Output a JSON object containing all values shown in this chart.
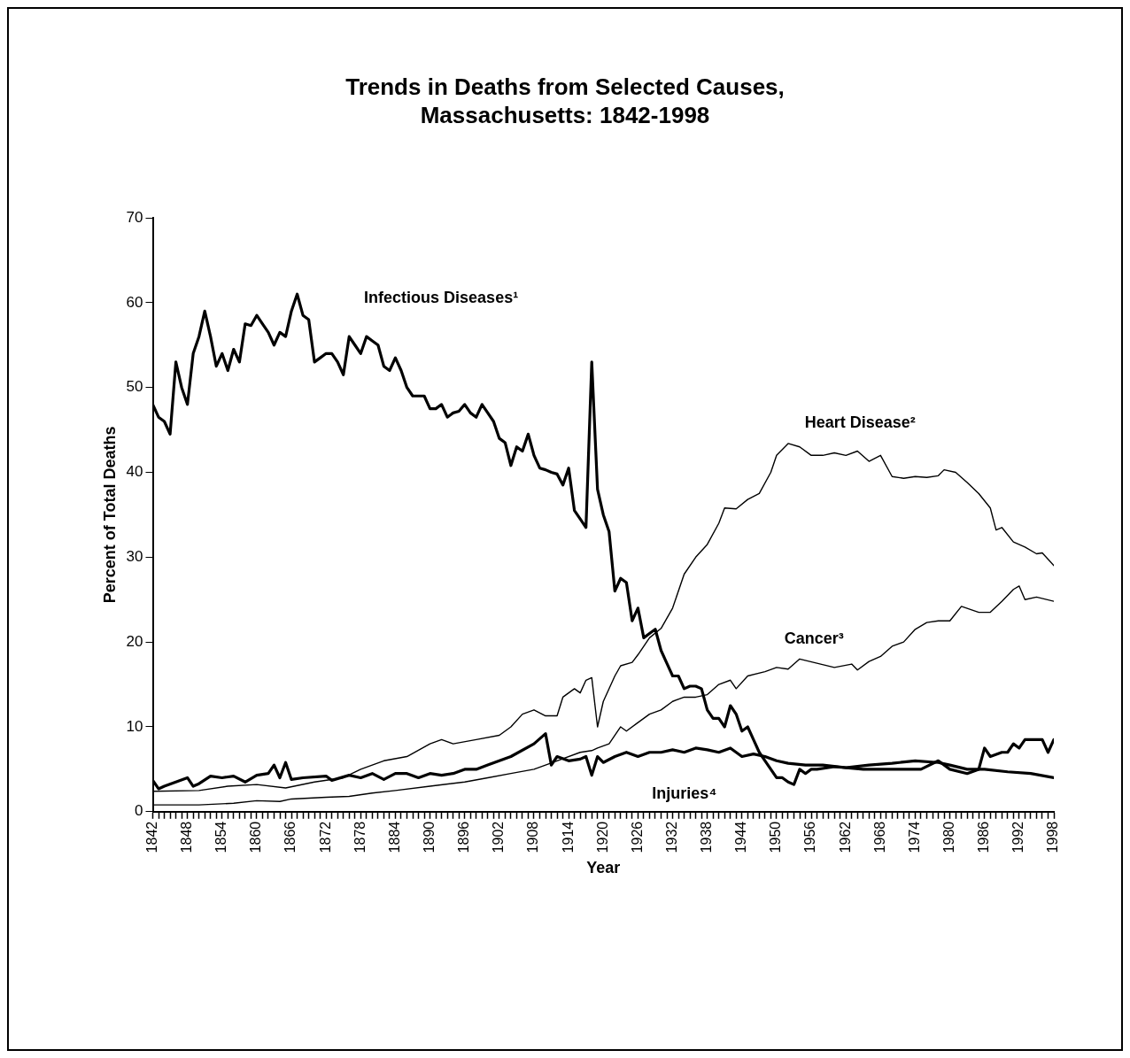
{
  "chart_data": {
    "type": "line",
    "title": "Trends in Deaths from Selected Causes, Massachusetts: 1842-1998",
    "xlabel": "Year",
    "ylabel": "Percent of Total Deaths",
    "xlim": [
      1842,
      1998
    ],
    "ylim": [
      0,
      70
    ],
    "yticks": [
      0,
      10,
      20,
      30,
      40,
      50,
      60,
      70
    ],
    "xticks": [
      1842,
      {
        "value": 1843,
        "label": null
      },
      {
        "value": 1844,
        "label": null
      },
      {
        "value": 1845,
        "label": null
      },
      {
        "value": 1846,
        "label": null
      },
      {
        "value": 1847,
        "label": null
      },
      1848,
      {
        "value": 1849,
        "label": null
      },
      {
        "value": 1850,
        "label": null
      },
      {
        "value": 1851,
        "label": null
      },
      {
        "value": 1852,
        "label": null
      },
      {
        "value": 1853,
        "label": null
      },
      1854,
      {
        "value": 1855,
        "label": null
      },
      {
        "value": 1856,
        "label": null
      },
      {
        "value": 1857,
        "label": null
      },
      {
        "value": 1858,
        "label": null
      },
      {
        "value": 1859,
        "label": null
      },
      1860,
      {
        "value": 1861,
        "label": null
      },
      {
        "value": 1862,
        "label": null
      },
      {
        "value": 1863,
        "label": null
      },
      {
        "value": 1864,
        "label": null
      },
      {
        "value": 1865,
        "label": null
      },
      1866,
      {
        "value": 1867,
        "label": null
      },
      {
        "value": 1868,
        "label": null
      },
      {
        "value": 1869,
        "label": null
      },
      {
        "value": 1870,
        "label": null
      },
      {
        "value": 1871,
        "label": null
      },
      1872,
      {
        "value": 1873,
        "label": null
      },
      {
        "value": 1874,
        "label": null
      },
      {
        "value": 1875,
        "label": null
      },
      {
        "value": 1876,
        "label": null
      },
      {
        "value": 1877,
        "label": null
      },
      1878,
      {
        "value": 1879,
        "label": null
      },
      {
        "value": 1880,
        "label": null
      },
      {
        "value": 1881,
        "label": null
      },
      {
        "value": 1882,
        "label": null
      },
      {
        "value": 1883,
        "label": null
      },
      1884,
      {
        "value": 1885,
        "label": null
      },
      {
        "value": 1886,
        "label": null
      },
      {
        "value": 1887,
        "label": null
      },
      {
        "value": 1888,
        "label": null
      },
      {
        "value": 1889,
        "label": null
      },
      1890,
      {
        "value": 1891,
        "label": null
      },
      {
        "value": 1892,
        "label": null
      },
      {
        "value": 1893,
        "label": null
      },
      {
        "value": 1894,
        "label": null
      },
      {
        "value": 1895,
        "label": null
      },
      1896,
      {
        "value": 1897,
        "label": null
      },
      {
        "value": 1898,
        "label": null
      },
      {
        "value": 1899,
        "label": null
      },
      {
        "value": 1900,
        "label": null
      },
      {
        "value": 1901,
        "label": null
      },
      1902,
      {
        "value": 1903,
        "label": null
      },
      {
        "value": 1904,
        "label": null
      },
      {
        "value": 1905,
        "label": null
      },
      {
        "value": 1906,
        "label": null
      },
      {
        "value": 1907,
        "label": null
      },
      1908,
      {
        "value": 1909,
        "label": null
      },
      {
        "value": 1910,
        "label": null
      },
      {
        "value": 1911,
        "label": null
      },
      {
        "value": 1912,
        "label": null
      },
      {
        "value": 1913,
        "label": null
      },
      1914,
      {
        "value": 1915,
        "label": null
      },
      {
        "value": 1916,
        "label": null
      },
      {
        "value": 1917,
        "label": null
      },
      {
        "value": 1918,
        "label": null
      },
      {
        "value": 1919,
        "label": null
      },
      1920,
      {
        "value": 1921,
        "label": null
      },
      {
        "value": 1922,
        "label": null
      },
      {
        "value": 1923,
        "label": null
      },
      {
        "value": 1924,
        "label": null
      },
      {
        "value": 1925,
        "label": null
      },
      1926,
      {
        "value": 1927,
        "label": null
      },
      {
        "value": 1928,
        "label": null
      },
      {
        "value": 1929,
        "label": null
      },
      {
        "value": 1930,
        "label": null
      },
      {
        "value": 1931,
        "label": null
      },
      1932,
      {
        "value": 1933,
        "label": null
      },
      {
        "value": 1934,
        "label": null
      },
      {
        "value": 1935,
        "label": null
      },
      {
        "value": 1936,
        "label": null
      },
      {
        "value": 1937,
        "label": null
      },
      1938,
      {
        "value": 1939,
        "label": null
      },
      {
        "value": 1940,
        "label": null
      },
      {
        "value": 1941,
        "label": null
      },
      {
        "value": 1942,
        "label": null
      },
      {
        "value": 1943,
        "label": null
      },
      1944,
      {
        "value": 1945,
        "label": null
      },
      {
        "value": 1946,
        "label": null
      },
      {
        "value": 1947,
        "label": null
      },
      {
        "value": 1948,
        "label": null
      },
      {
        "value": 1949,
        "label": null
      },
      1950,
      {
        "value": 1951,
        "label": null
      },
      {
        "value": 1952,
        "label": null
      },
      {
        "value": 1953,
        "label": null
      },
      {
        "value": 1954,
        "label": null
      },
      {
        "value": 1955,
        "label": null
      },
      1956,
      {
        "value": 1957,
        "label": null
      },
      {
        "value": 1958,
        "label": null
      },
      {
        "value": 1959,
        "label": null
      },
      {
        "value": 1960,
        "label": null
      },
      {
        "value": 1961,
        "label": null
      },
      1962,
      {
        "value": 1963,
        "label": null
      },
      {
        "value": 1964,
        "label": null
      },
      {
        "value": 1965,
        "label": null
      },
      {
        "value": 1966,
        "label": null
      },
      {
        "value": 1967,
        "label": null
      },
      1968,
      {
        "value": 1969,
        "label": null
      },
      {
        "value": 1970,
        "label": null
      },
      {
        "value": 1971,
        "label": null
      },
      {
        "value": 1972,
        "label": null
      },
      {
        "value": 1973,
        "label": null
      },
      1974,
      {
        "value": 1975,
        "label": null
      },
      {
        "value": 1976,
        "label": null
      },
      {
        "value": 1977,
        "label": null
      },
      {
        "value": 1978,
        "label": null
      },
      {
        "value": 1979,
        "label": null
      },
      1980,
      {
        "value": 1981,
        "label": null
      },
      {
        "value": 1982,
        "label": null
      },
      {
        "value": 1983,
        "label": null
      },
      {
        "value": 1984,
        "label": null
      },
      {
        "value": 1985,
        "label": null
      },
      1986,
      {
        "value": 1987,
        "label": null
      },
      {
        "value": 1988,
        "label": null
      },
      {
        "value": 1989,
        "label": null
      },
      {
        "value": 1990,
        "label": null
      },
      {
        "value": 1991,
        "label": null
      },
      1992,
      {
        "value": 1993,
        "label": null
      },
      {
        "value": 1994,
        "label": null
      },
      {
        "value": 1995,
        "label": null
      },
      {
        "value": 1996,
        "label": null
      },
      {
        "value": 1997,
        "label": null
      },
      1998
    ],
    "grid": false,
    "legend": false,
    "marker": "none",
    "line_style": "solid",
    "series": [
      {
        "name": "Infectious Diseases¹",
        "color": "#000000",
        "x": [
          1842,
          1843,
          1844,
          1845,
          1846,
          1847,
          1848,
          1849,
          1850,
          1851,
          1852,
          1853,
          1854,
          1855,
          1856,
          1857,
          1858,
          1859,
          1860,
          1861,
          1862,
          1863,
          1864,
          1865,
          1866,
          1867,
          1868,
          1869,
          1870,
          1871,
          1872,
          1873,
          1874,
          1875,
          1876,
          1877,
          1878,
          1879,
          1880,
          1881,
          1882,
          1883,
          1884,
          1885,
          1886,
          1887,
          1888,
          1889,
          1890,
          1891,
          1892,
          1893,
          1894,
          1895,
          1896,
          1897,
          1898,
          1899,
          1900,
          1901,
          1902,
          1903,
          1904,
          1905,
          1906,
          1907,
          1908,
          1909,
          1910,
          1911,
          1912,
          1913,
          1914,
          1915,
          1916,
          1917,
          1918,
          1919,
          1920,
          1921,
          1922,
          1923,
          1924,
          1925,
          1926,
          1927,
          1928,
          1929,
          1930,
          1931,
          1932,
          1933,
          1934,
          1935,
          1936,
          1937,
          1938,
          1939,
          1940,
          1941,
          1942,
          1943,
          1944,
          1945,
          1946,
          1947,
          1948,
          1949,
          1950,
          1951,
          1952,
          1953,
          1954,
          1955,
          1956,
          1957,
          1960,
          1965,
          1970,
          1975,
          1978,
          1980,
          1983,
          1985,
          1986,
          1987,
          1989,
          1990,
          1991,
          1992,
          1993,
          1996,
          1997,
          1998
        ],
        "values": [
          48,
          46.5,
          46,
          44.5,
          53,
          50,
          48,
          54,
          56,
          59,
          56,
          52.5,
          54,
          52,
          54.5,
          53,
          57.5,
          57.3,
          58.5,
          57.5,
          56.5,
          55,
          56.5,
          56,
          59,
          61,
          58.5,
          58,
          53,
          53.5,
          54,
          54,
          53,
          51.5,
          56,
          55,
          54,
          56,
          55.5,
          55,
          52.5,
          52,
          53.5,
          52,
          50,
          49,
          49,
          49,
          47.5,
          47.5,
          48,
          46.5,
          47,
          47.2,
          48,
          47,
          46.5,
          48,
          47,
          46,
          44,
          43.5,
          40.8,
          43,
          42.5,
          44.5,
          42,
          40.5,
          40.3,
          40,
          39.8,
          38.5,
          40.5,
          35.5,
          34.5,
          33.5,
          53,
          38,
          35,
          33,
          26,
          27.5,
          27,
          22.5,
          24,
          20.5,
          21,
          21.5,
          19,
          17.5,
          16,
          16,
          14.5,
          14.8,
          14.8,
          14.5,
          12,
          11,
          11,
          10,
          12.5,
          11.5,
          9.5,
          10,
          8.5,
          7,
          6,
          5,
          4,
          4,
          3.5,
          3.2,
          5,
          4.5,
          5,
          5,
          5.3,
          5,
          5,
          5,
          6,
          5,
          4.5,
          5,
          7.5,
          6.5,
          7,
          7,
          8,
          7.5,
          8.5,
          8.5,
          7,
          8.5
        ]
      },
      {
        "name": "Heart Disease²",
        "color": "#000000",
        "x": [
          1842,
          1850,
          1855,
          1860,
          1865,
          1870,
          1875,
          1878,
          1882,
          1886,
          1890,
          1892,
          1894,
          1898,
          1902,
          1904,
          1906,
          1908,
          1910,
          1912,
          1913,
          1915,
          1916,
          1917,
          1918,
          1919,
          1920,
          1922,
          1923,
          1925,
          1926,
          1928,
          1930,
          1932,
          1934,
          1936,
          1938,
          1940,
          1941,
          1943,
          1945,
          1947,
          1949,
          1950,
          1952,
          1954,
          1956,
          1958,
          1960,
          1962,
          1964,
          1966,
          1968,
          1970,
          1972,
          1974,
          1976,
          1978,
          1979,
          1981,
          1983,
          1985,
          1987,
          1988,
          1989,
          1991,
          1993,
          1995,
          1996,
          1998
        ],
        "values": [
          2.4,
          2.5,
          3,
          3.2,
          2.8,
          3.5,
          4,
          5,
          6,
          6.5,
          8,
          8.5,
          8,
          8.5,
          9,
          10,
          11.5,
          12,
          11.3,
          11.3,
          13.5,
          14.5,
          14,
          15.5,
          15.8,
          10,
          13,
          16,
          17.2,
          17.6,
          18.5,
          20.5,
          21.6,
          24,
          28,
          30,
          31.5,
          34,
          35.8,
          35.7,
          36.8,
          37.5,
          40,
          42,
          43.4,
          43,
          42,
          42,
          42.3,
          42,
          42.5,
          41.3,
          42,
          39.5,
          39.3,
          39.5,
          39.4,
          39.6,
          40.3,
          40,
          38.8,
          37.5,
          35.8,
          33.2,
          33.5,
          31.8,
          31.2,
          30.4,
          30.5,
          29
        ]
      },
      {
        "name": "Cancer³",
        "color": "#000000",
        "x": [
          1842,
          1850,
          1856,
          1860,
          1864,
          1866,
          1872,
          1876,
          1880,
          1884,
          1890,
          1896,
          1900,
          1904,
          1908,
          1912,
          1916,
          1918,
          1919,
          1921,
          1923,
          1924,
          1926,
          1928,
          1930,
          1932,
          1934,
          1936,
          1938,
          1940,
          1942,
          1943,
          1945,
          1948,
          1950,
          1952,
          1954,
          1957,
          1960,
          1963,
          1964,
          1966,
          1968,
          1970,
          1972,
          1974,
          1976,
          1978,
          1980,
          1982,
          1985,
          1987,
          1989,
          1991,
          1992,
          1993,
          1995,
          1998
        ],
        "values": [
          0.8,
          0.8,
          1,
          1.3,
          1.2,
          1.5,
          1.7,
          1.8,
          2.2,
          2.5,
          3,
          3.5,
          4,
          4.5,
          5,
          6,
          7,
          7.2,
          7.5,
          8,
          10,
          9.5,
          10.5,
          11.5,
          12,
          13,
          13.5,
          13.5,
          13.8,
          15,
          15.5,
          14.5,
          16,
          16.5,
          17,
          16.8,
          18,
          17.5,
          17,
          17.4,
          16.7,
          17.7,
          18.3,
          19.5,
          20,
          21.5,
          22.3,
          22.5,
          22.5,
          24.2,
          23.5,
          23.5,
          24.8,
          26.2,
          26.6,
          25,
          25.3,
          24.8
        ]
      },
      {
        "name": "Injuries⁴",
        "color": "#000000",
        "x": [
          1842,
          1843,
          1844,
          1846,
          1848,
          1849,
          1850,
          1852,
          1854,
          1856,
          1858,
          1860,
          1862,
          1863,
          1864,
          1865,
          1866,
          1868,
          1872,
          1873,
          1876,
          1878,
          1880,
          1882,
          1884,
          1886,
          1888,
          1890,
          1892,
          1894,
          1896,
          1898,
          1900,
          1904,
          1908,
          1910,
          1911,
          1912,
          1914,
          1916,
          1917,
          1918,
          1919,
          1920,
          1922,
          1924,
          1926,
          1928,
          1930,
          1932,
          1934,
          1936,
          1938,
          1940,
          1942,
          1944,
          1946,
          1948,
          1950,
          1952,
          1955,
          1958,
          1962,
          1966,
          1970,
          1974,
          1978,
          1980,
          1983,
          1986,
          1990,
          1994,
          1998
        ],
        "values": [
          3.7,
          2.7,
          3,
          3.5,
          4,
          3,
          3.3,
          4.2,
          4,
          4.2,
          3.5,
          4.3,
          4.5,
          5.5,
          4,
          5.8,
          3.8,
          4,
          4.2,
          3.7,
          4.3,
          4,
          4.5,
          3.8,
          4.5,
          4.5,
          4,
          4.5,
          4.3,
          4.5,
          5,
          5,
          5.5,
          6.5,
          8,
          9.2,
          5.5,
          6.5,
          6,
          6.2,
          6.5,
          4.3,
          6.5,
          5.8,
          6.5,
          7,
          6.5,
          7,
          7,
          7.3,
          7,
          7.5,
          7.3,
          7,
          7.5,
          6.5,
          6.8,
          6.5,
          6,
          5.7,
          5.5,
          5.5,
          5.2,
          5.5,
          5.7,
          6,
          5.8,
          5.5,
          5,
          5,
          4.7,
          4.5,
          4
        ]
      }
    ]
  }
}
